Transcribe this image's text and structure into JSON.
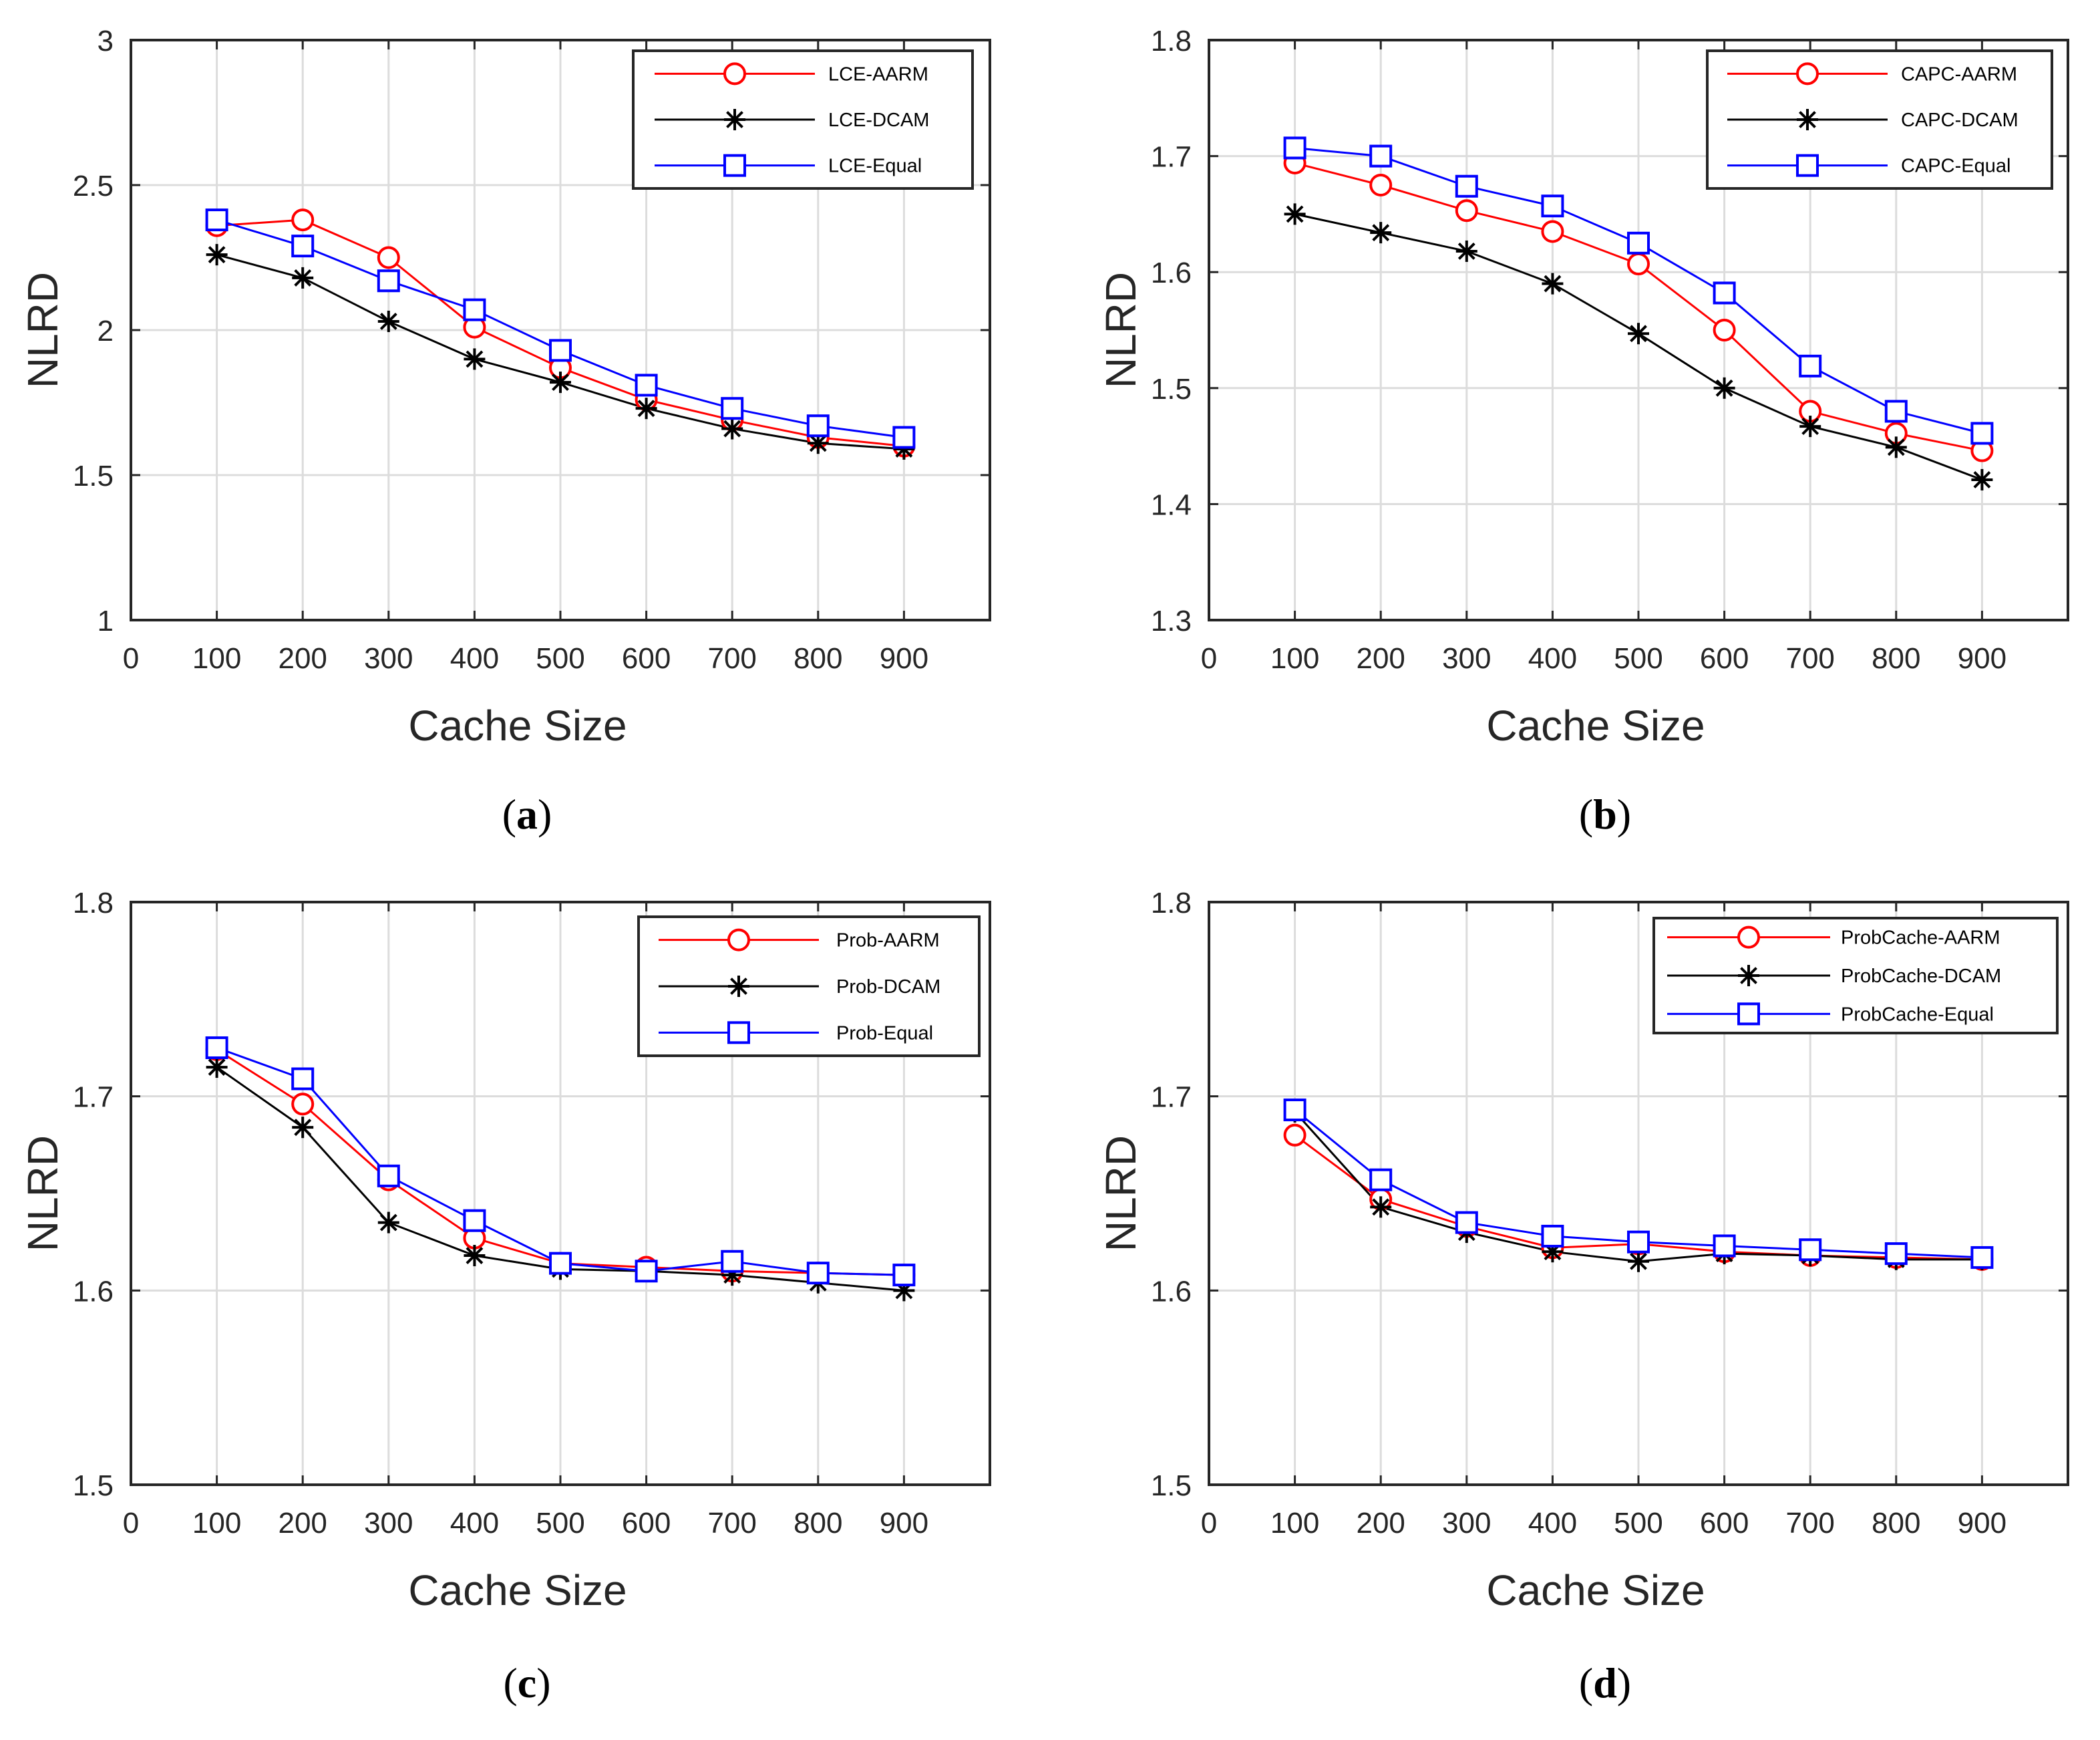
{
  "figure": {
    "colors": {
      "AARM": "#ff0000",
      "DCAM": "#000000",
      "Equal": "#0000ff",
      "grid": "#dcdcdc",
      "axes": "#262626",
      "text": "#262626"
    }
  },
  "chart_data": [
    {
      "type": "line",
      "panel": "a",
      "caption_letter": "a",
      "xlabel": "Cache Size",
      "ylabel": "NLRD",
      "xlim": [
        0,
        1000
      ],
      "ylim": [
        1,
        3
      ],
      "xticks": [
        0,
        100,
        200,
        300,
        400,
        500,
        600,
        700,
        800,
        900
      ],
      "yticks": [
        1,
        1.5,
        2,
        2.5,
        3
      ],
      "ytick_labels": [
        "1",
        "1.5",
        "2",
        "2.5",
        "3"
      ],
      "grid": true,
      "legend_position": "top-right",
      "x": [
        100,
        200,
        300,
        400,
        500,
        600,
        700,
        800,
        900
      ],
      "series": [
        {
          "name": "LCE-AARM",
          "key": "AARM",
          "marker": "circle",
          "values": [
            2.36,
            2.38,
            2.25,
            2.01,
            1.87,
            1.76,
            1.69,
            1.63,
            1.6
          ]
        },
        {
          "name": "LCE-DCAM",
          "key": "DCAM",
          "marker": "asterisk",
          "values": [
            2.26,
            2.18,
            2.03,
            1.9,
            1.82,
            1.73,
            1.66,
            1.61,
            1.59
          ]
        },
        {
          "name": "LCE-Equal",
          "key": "Equal",
          "marker": "square",
          "values": [
            2.38,
            2.29,
            2.17,
            2.07,
            1.93,
            1.81,
            1.73,
            1.67,
            1.63
          ]
        }
      ]
    },
    {
      "type": "line",
      "panel": "b",
      "caption_letter": "b",
      "xlabel": "Cache Size",
      "ylabel": "NLRD",
      "xlim": [
        0,
        1000
      ],
      "ylim": [
        1.3,
        1.8
      ],
      "xticks": [
        0,
        100,
        200,
        300,
        400,
        500,
        600,
        700,
        800,
        900
      ],
      "yticks": [
        1.3,
        1.4,
        1.5,
        1.6,
        1.7,
        1.8
      ],
      "ytick_labels": [
        "1.3",
        "1.4",
        "1.5",
        "1.6",
        "1.7",
        "1.8"
      ],
      "grid": true,
      "legend_position": "top-right",
      "x": [
        100,
        200,
        300,
        400,
        500,
        600,
        700,
        800,
        900
      ],
      "series": [
        {
          "name": "CAPC-AARM",
          "key": "AARM",
          "marker": "circle",
          "values": [
            1.694,
            1.675,
            1.653,
            1.635,
            1.607,
            1.55,
            1.48,
            1.461,
            1.446
          ]
        },
        {
          "name": "CAPC-DCAM",
          "key": "DCAM",
          "marker": "asterisk",
          "values": [
            1.65,
            1.634,
            1.618,
            1.59,
            1.547,
            1.5,
            1.467,
            1.449,
            1.421
          ]
        },
        {
          "name": "CAPC-Equal",
          "key": "Equal",
          "marker": "square",
          "values": [
            1.707,
            1.7,
            1.674,
            1.657,
            1.625,
            1.582,
            1.519,
            1.48,
            1.461
          ]
        }
      ]
    },
    {
      "type": "line",
      "panel": "c",
      "caption_letter": "c",
      "xlabel": "Cache Size",
      "ylabel": "NLRD",
      "xlim": [
        0,
        1000
      ],
      "ylim": [
        1.5,
        1.8
      ],
      "xticks": [
        0,
        100,
        200,
        300,
        400,
        500,
        600,
        700,
        800,
        900
      ],
      "yticks": [
        1.5,
        1.6,
        1.7,
        1.8
      ],
      "ytick_labels": [
        "1.5",
        "1.6",
        "1.7",
        "1.8"
      ],
      "grid": true,
      "legend_position": "top-right",
      "x": [
        100,
        200,
        300,
        400,
        500,
        600,
        700,
        800,
        900
      ],
      "series": [
        {
          "name": "Prob-AARM",
          "key": "AARM",
          "marker": "circle",
          "values": [
            1.724,
            1.696,
            1.657,
            1.627,
            1.614,
            1.612,
            1.61,
            1.609,
            1.608
          ]
        },
        {
          "name": "Prob-DCAM",
          "key": "DCAM",
          "marker": "asterisk",
          "values": [
            1.715,
            1.684,
            1.635,
            1.618,
            1.611,
            1.61,
            1.608,
            1.604,
            1.6
          ]
        },
        {
          "name": "Prob-Equal",
          "key": "Equal",
          "marker": "square",
          "values": [
            1.725,
            1.709,
            1.659,
            1.636,
            1.614,
            1.61,
            1.615,
            1.609,
            1.608
          ]
        }
      ]
    },
    {
      "type": "line",
      "panel": "d",
      "caption_letter": "d",
      "xlabel": "Cache Size",
      "ylabel": "NLRD",
      "xlim": [
        0,
        1000
      ],
      "ylim": [
        1.5,
        1.8
      ],
      "xticks": [
        0,
        100,
        200,
        300,
        400,
        500,
        600,
        700,
        800,
        900
      ],
      "yticks": [
        1.5,
        1.6,
        1.7,
        1.8
      ],
      "ytick_labels": [
        "1.5",
        "1.6",
        "1.7",
        "1.8"
      ],
      "grid": true,
      "legend_position": "top-right",
      "x": [
        100,
        200,
        300,
        400,
        500,
        600,
        700,
        800,
        900
      ],
      "series": [
        {
          "name": "ProbCache-AARM",
          "key": "AARM",
          "marker": "circle",
          "values": [
            1.68,
            1.647,
            1.633,
            1.622,
            1.624,
            1.62,
            1.618,
            1.617,
            1.616
          ]
        },
        {
          "name": "ProbCache-DCAM",
          "key": "DCAM",
          "marker": "asterisk",
          "values": [
            1.692,
            1.643,
            1.63,
            1.62,
            1.615,
            1.619,
            1.618,
            1.616,
            1.616
          ]
        },
        {
          "name": "ProbCache-Equal",
          "key": "Equal",
          "marker": "square",
          "values": [
            1.693,
            1.657,
            1.635,
            1.628,
            1.625,
            1.623,
            1.621,
            1.619,
            1.617
          ]
        }
      ]
    }
  ]
}
